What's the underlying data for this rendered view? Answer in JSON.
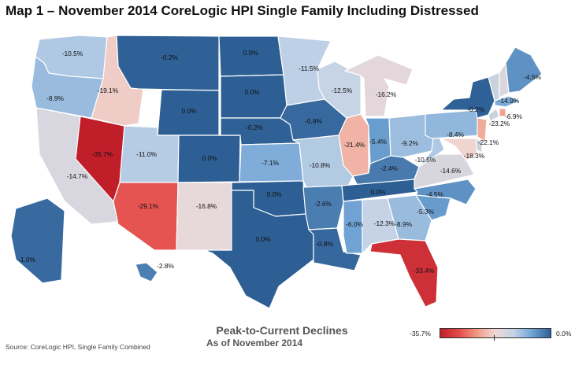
{
  "title": "Map 1 – November 2014 CoreLogic HPI Single Family Including Distressed",
  "caption": {
    "title": "Peak-to-Current Declines",
    "subtitle": "As of November 2014"
  },
  "source": "Source: CoreLogic HPI, Single Family Combined",
  "legend": {
    "min_label": "-35.7%",
    "max_label": "0.0%",
    "min_value": -35.7,
    "max_value": 0.0,
    "color_stops": [
      "#c01f2a",
      "#e34b4b",
      "#f19a84",
      "#efd9d6",
      "#c3d3e7",
      "#6fa3d4",
      "#2d5f94"
    ]
  },
  "states": [
    {
      "id": "WA",
      "value": -10.5,
      "label": "-10.5%"
    },
    {
      "id": "OR",
      "value": -8.9,
      "label": "-8.9%"
    },
    {
      "id": "CA",
      "value": -14.7,
      "label": "-14.7%"
    },
    {
      "id": "NV",
      "value": -35.7,
      "label": "-35.7%"
    },
    {
      "id": "ID",
      "value": -19.1,
      "label": "-19.1%"
    },
    {
      "id": "MT",
      "value": -0.2,
      "label": "-0.2%"
    },
    {
      "id": "WY",
      "value": 0.0,
      "label": "0.0%"
    },
    {
      "id": "UT",
      "value": -11.0,
      "label": "-11.0%"
    },
    {
      "id": "AZ",
      "value": -29.1,
      "label": "-29.1%"
    },
    {
      "id": "CO",
      "value": 0.0,
      "label": "0.0%"
    },
    {
      "id": "NM",
      "value": -16.8,
      "label": "-16.8%"
    },
    {
      "id": "ND",
      "value": 0.0,
      "label": "0.0%"
    },
    {
      "id": "SD",
      "value": 0.0,
      "label": "0.0%"
    },
    {
      "id": "NE",
      "value": -0.2,
      "label": "-0.2%"
    },
    {
      "id": "KS",
      "value": -7.1,
      "label": "-7.1%"
    },
    {
      "id": "OK",
      "value": 0.0,
      "label": "0.0%"
    },
    {
      "id": "TX",
      "value": 0.0,
      "label": "0.0%"
    },
    {
      "id": "MN",
      "value": -11.5,
      "label": "-11.5%"
    },
    {
      "id": "IA",
      "value": -0.9,
      "label": "-0.9%"
    },
    {
      "id": "MO",
      "value": -10.8,
      "label": "-10.8%"
    },
    {
      "id": "AR",
      "value": -2.6,
      "label": "-2.6%"
    },
    {
      "id": "LA",
      "value": -0.8,
      "label": "-0.8%"
    },
    {
      "id": "WI",
      "value": -12.5,
      "label": "-12.5%"
    },
    {
      "id": "IL",
      "value": -21.4,
      "label": "-21.4%"
    },
    {
      "id": "MI",
      "value": -16.2,
      "label": "-16.2%"
    },
    {
      "id": "IN",
      "value": -5.4,
      "label": "-5.4%"
    },
    {
      "id": "OH",
      "value": -9.2,
      "label": "-9.2%"
    },
    {
      "id": "KY",
      "value": -2.4,
      "label": "-2.4%"
    },
    {
      "id": "TN",
      "value": 0.0,
      "label": "0.0%"
    },
    {
      "id": "MS",
      "value": -6.0,
      "label": "-6.0%"
    },
    {
      "id": "AL",
      "value": -12.3,
      "label": "-12.3%"
    },
    {
      "id": "GA",
      "value": -8.9,
      "label": "-8.9%"
    },
    {
      "id": "FL",
      "value": -33.4,
      "label": "-33.4%"
    },
    {
      "id": "SC",
      "value": -5.3,
      "label": "-5.3%"
    },
    {
      "id": "NC",
      "value": -4.5,
      "label": "-4.5%"
    },
    {
      "id": "VA",
      "value": -14.6,
      "label": "-14.6%"
    },
    {
      "id": "WV",
      "value": -10.5,
      "label": "-10.5%"
    },
    {
      "id": "PA",
      "value": -8.4,
      "label": "-8.4%"
    },
    {
      "id": "NY",
      "value": -0.2,
      "label": "-0.2%"
    },
    {
      "id": "VT",
      "value": null,
      "label": ""
    },
    {
      "id": "NH",
      "value": -14.9,
      "label": "-14.9%"
    },
    {
      "id": "ME",
      "value": -4.5,
      "label": "-4.5%"
    },
    {
      "id": "MA",
      "value": -6.9,
      "label": "-6.9%"
    },
    {
      "id": "CT",
      "value": null,
      "label": ""
    },
    {
      "id": "RI",
      "value": -23.2,
      "label": "-23.2%"
    },
    {
      "id": "NJ",
      "value": -22.1,
      "label": "-22.1%"
    },
    {
      "id": "DE",
      "value": null,
      "label": ""
    },
    {
      "id": "MD",
      "value": -18.3,
      "label": "-18.3%"
    },
    {
      "id": "AK",
      "value": -1.0,
      "label": "-1.0%"
    },
    {
      "id": "HI",
      "value": -2.8,
      "label": "-2.8%"
    }
  ]
}
